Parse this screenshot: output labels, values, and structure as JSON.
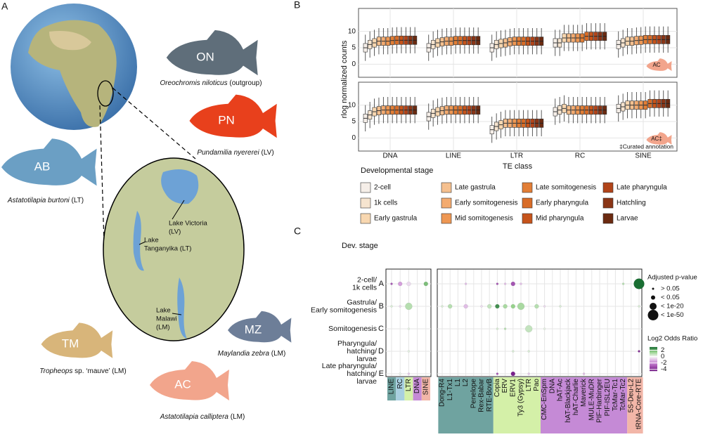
{
  "panel_labels": [
    "A",
    "B",
    "C"
  ],
  "panel_a": {
    "species": [
      {
        "code": "ON",
        "italic": "Oreochromis niloticus",
        "rest": " (outgroup)",
        "color": "#5f6e7a"
      },
      {
        "code": "PN",
        "italic": "Pundamilia nyererei",
        "rest": " (LV)",
        "color": "#e8401c"
      },
      {
        "code": "AB",
        "italic": "Astatotilapia burtoni",
        "rest": " (LT)",
        "color": "#6b9fc4"
      },
      {
        "code": "MZ",
        "italic": "Maylandia zebra",
        "rest": " (LM)",
        "color": "#6d7e98"
      },
      {
        "code": "TM",
        "italic": "Tropheops",
        "rest": " sp. ‘mauve’ (LM)",
        "color": "#d8b57a"
      },
      {
        "code": "AC",
        "italic": "Astatotilapia calliptera",
        "rest": " (LM)",
        "color": "#f2a58c"
      }
    ],
    "lakes": [
      [
        "Lake Victoria",
        "(LV)"
      ],
      [
        "Lake",
        "Tanganyika (LT)"
      ],
      [
        "Lake",
        "Malawi",
        "(LM)"
      ]
    ]
  },
  "chart_data": [
    {
      "type": "boxplot",
      "y_label": "rlog normalized counts",
      "x_label": "TE class",
      "legend_title": "Developmental stage",
      "categories": [
        "DNA",
        "LINE",
        "LTR",
        "RC",
        "SINE"
      ],
      "ylim": [
        -4,
        17
      ],
      "yticks": [
        0,
        5,
        10
      ],
      "grid": true,
      "stages": [
        {
          "name": "2-cell",
          "color": "#f5eee8"
        },
        {
          "name": "1k cells",
          "color": "#f6e4cf"
        },
        {
          "name": "Early gastrula",
          "color": "#f8d7b0"
        },
        {
          "name": "Late gastrula",
          "color": "#f5c08f"
        },
        {
          "name": "Early somitogenesis",
          "color": "#f3ab70"
        },
        {
          "name": "Mid somitogenesis",
          "color": "#ee9753"
        },
        {
          "name": "Late somitogenesis",
          "color": "#e27e36"
        },
        {
          "name": "Early pharyngula",
          "color": "#d86c27"
        },
        {
          "name": "Mid pharyngula",
          "color": "#c6541b"
        },
        {
          "name": "Late pharyngula",
          "color": "#b14419"
        },
        {
          "name": "Hatchling",
          "color": "#8a3516"
        },
        {
          "name": "Larvae",
          "color": "#6b2a10"
        }
      ],
      "facets": [
        {
          "tag": "AC",
          "values": [
            [
              5,
              6,
              6.5,
              7,
              7,
              7,
              7.2,
              7.3,
              7.3,
              7.3,
              7.3,
              7.3
            ],
            [
              5,
              6,
              6.5,
              6.8,
              7,
              7,
              7.2,
              7.2,
              7.2,
              7.2,
              7.2,
              7.2
            ],
            [
              5,
              6,
              6.3,
              6.5,
              6.8,
              7,
              7,
              7,
              7,
              7,
              7,
              7
            ],
            [
              6.5,
              6.5,
              8,
              8,
              8,
              8,
              8,
              8.5,
              8.5,
              8.5,
              8.5,
              8.5
            ],
            [
              6,
              6.5,
              7,
              7,
              7.2,
              7.3,
              7.5,
              7.5,
              7.5,
              7.5,
              7.5,
              7.5
            ]
          ]
        },
        {
          "tag": "AC‡",
          "note": "‡Curated annotation",
          "values": [
            [
              6,
              7,
              8,
              8.3,
              8.5,
              8.5,
              8.5,
              8.5,
              8.5,
              8.5,
              8.5,
              8.5
            ],
            [
              6.5,
              7.5,
              8,
              8.3,
              8.5,
              8.5,
              8.5,
              8.5,
              8.5,
              8.5,
              8.5,
              8.5
            ],
            [
              2.5,
              3.5,
              4,
              4.5,
              4.5,
              4.5,
              4.5,
              4.5,
              4.5,
              4.5,
              4.5,
              4.5
            ],
            [
              8,
              8.5,
              9,
              8.5,
              8.5,
              8.5,
              8.5,
              8.5,
              8.5,
              8.5,
              8.5,
              8.5
            ],
            [
              9,
              9.5,
              10,
              10,
              10,
              10,
              10,
              10.5,
              10.5,
              10.5,
              10.5,
              10.5
            ]
          ]
        }
      ]
    },
    {
      "type": "dot",
      "title": "Dev. stage",
      "rows": [
        {
          "letter": "A",
          "lines": [
            "2-cell/",
            "1k cells"
          ]
        },
        {
          "letter": "B",
          "lines": [
            "Gastrula/",
            "Early somitogenesis"
          ]
        },
        {
          "letter": "C",
          "lines": [
            "Somitogenesis"
          ]
        },
        {
          "letter": "D",
          "lines": [
            "Pharyngula/",
            "hatching/",
            "larvae"
          ]
        },
        {
          "letter": "E",
          "lines": [
            "Late pharyngula/",
            "hatching/",
            "larvae"
          ]
        }
      ],
      "groups": [
        {
          "name": "LINE",
          "color": "#6fa3a0"
        },
        {
          "name": "RC",
          "color": "#a8cfe0"
        },
        {
          "name": "LTR",
          "color": "#d4f0a8"
        },
        {
          "name": "DNA",
          "color": "#c58ad6"
        },
        {
          "name": "SINE",
          "color": "#f2b6a8"
        }
      ],
      "families": [
        {
          "name": "Dong-R4",
          "group": 0
        },
        {
          "name": "L1-Tx1",
          "group": 0
        },
        {
          "name": "L1",
          "group": 0
        },
        {
          "name": "L2",
          "group": 0
        },
        {
          "name": "Penelope",
          "group": 0
        },
        {
          "name": "Rex-Babar",
          "group": 0
        },
        {
          "name": "RTE-BovB",
          "group": 0
        },
        {
          "name": "Copia",
          "group": 2
        },
        {
          "name": "ERV",
          "group": 2
        },
        {
          "name": "ERV1",
          "group": 2
        },
        {
          "name": "Ty3 (Gypsy)",
          "group": 2
        },
        {
          "name": "LTR",
          "group": 2
        },
        {
          "name": "Pao",
          "group": 2
        },
        {
          "name": "CMC-EnSpm",
          "group": 3
        },
        {
          "name": "DNA",
          "group": 3
        },
        {
          "name": "hAT-Ac",
          "group": 3
        },
        {
          "name": "hAT-Blackjack",
          "group": 3
        },
        {
          "name": "hAT-Charlie",
          "group": 3
        },
        {
          "name": "Maverick",
          "group": 3
        },
        {
          "name": "MULE-MuDR",
          "group": 3
        },
        {
          "name": "PIF-Harbinger",
          "group": 3
        },
        {
          "name": "PIF-ISL2EU",
          "group": 3
        },
        {
          "name": "TcMar-Tc1",
          "group": 3
        },
        {
          "name": "TcMar-Tc2",
          "group": 3
        },
        {
          "name": "5S-Deu-L2",
          "group": 4
        },
        {
          "name": "tRNA-Core-RTE",
          "group": 4
        }
      ],
      "size_legend_title": "Adjusted p-value",
      "size_levels": [
        "> 0.05",
        "< 0.05",
        "< 1e-20",
        "< 1e-50"
      ],
      "color_legend_title": "Log2 Odds Ratio",
      "clim": [
        -4.5,
        3
      ],
      "cticks": [
        2,
        0,
        -2,
        -4
      ],
      "class_points": [
        {
          "row": 0,
          "col": 0,
          "p": "> 0.05",
          "ratio": -3
        },
        {
          "row": 0,
          "col": 1,
          "p": "< 0.05",
          "ratio": -1.5
        },
        {
          "row": 0,
          "col": 2,
          "p": "< 0.05",
          "ratio": -0.5
        },
        {
          "row": 0,
          "col": 4,
          "p": "< 0.05",
          "ratio": 1.8
        },
        {
          "row": 1,
          "col": 0,
          "p": "> 0.05",
          "ratio": 0.5
        },
        {
          "row": 1,
          "col": 1,
          "p": "> 0.05",
          "ratio": -0.5
        },
        {
          "row": 1,
          "col": 2,
          "p": "< 1e-20",
          "ratio": 1
        },
        {
          "row": 2,
          "col": 2,
          "p": "> 0.05",
          "ratio": 0.3
        },
        {
          "row": 3,
          "col": 2,
          "p": "> 0.05",
          "ratio": 0.3
        },
        {
          "row": 4,
          "col": 1,
          "p": "> 0.05",
          "ratio": 0.2
        },
        {
          "row": 4,
          "col": 2,
          "p": "> 0.05",
          "ratio": -0.8
        }
      ],
      "family_points": [
        {
          "row": 0,
          "col": 3,
          "p": "> 0.05",
          "ratio": -1
        },
        {
          "row": 0,
          "col": 7,
          "p": "> 0.05",
          "ratio": -3
        },
        {
          "row": 0,
          "col": 8,
          "p": "> 0.05",
          "ratio": -1
        },
        {
          "row": 0,
          "col": 9,
          "p": "< 0.05",
          "ratio": -3
        },
        {
          "row": 0,
          "col": 10,
          "p": "> 0.05",
          "ratio": -1
        },
        {
          "row": 0,
          "col": 23,
          "p": "> 0.05",
          "ratio": 1
        },
        {
          "row": 0,
          "col": 25,
          "p": "< 1e-50",
          "ratio": 3
        },
        {
          "row": 1,
          "col": 0,
          "p": "> 0.05",
          "ratio": 0.5
        },
        {
          "row": 1,
          "col": 1,
          "p": "< 0.05",
          "ratio": 1
        },
        {
          "row": 1,
          "col": 3,
          "p": "< 0.05",
          "ratio": -1
        },
        {
          "row": 1,
          "col": 5,
          "p": "> 0.05",
          "ratio": -0.5
        },
        {
          "row": 1,
          "col": 6,
          "p": "< 0.05",
          "ratio": 0.8
        },
        {
          "row": 1,
          "col": 7,
          "p": "< 0.05",
          "ratio": 2.5
        },
        {
          "row": 1,
          "col": 8,
          "p": "< 0.05",
          "ratio": 1.2
        },
        {
          "row": 1,
          "col": 9,
          "p": "< 0.05",
          "ratio": 1.5
        },
        {
          "row": 1,
          "col": 10,
          "p": "< 1e-20",
          "ratio": 1.2
        },
        {
          "row": 1,
          "col": 12,
          "p": "< 0.05",
          "ratio": 1
        },
        {
          "row": 1,
          "col": 13,
          "p": "> 0.05",
          "ratio": -0.5
        },
        {
          "row": 1,
          "col": 15,
          "p": "> 0.05",
          "ratio": 0.5
        },
        {
          "row": 1,
          "col": 25,
          "p": "> 0.05",
          "ratio": 0.5
        },
        {
          "row": 2,
          "col": 7,
          "p": "> 0.05",
          "ratio": 0.5
        },
        {
          "row": 2,
          "col": 8,
          "p": "> 0.05",
          "ratio": 1
        },
        {
          "row": 2,
          "col": 11,
          "p": "< 1e-20",
          "ratio": 0.8
        },
        {
          "row": 2,
          "col": 13,
          "p": "> 0.05",
          "ratio": 0.3
        },
        {
          "row": 3,
          "col": 9,
          "p": "> 0.05",
          "ratio": 0.5
        },
        {
          "row": 3,
          "col": 11,
          "p": "> 0.05",
          "ratio": 0.5
        },
        {
          "row": 3,
          "col": 25,
          "p": "> 0.05",
          "ratio": -4
        },
        {
          "row": 4,
          "col": 7,
          "p": "> 0.05",
          "ratio": -3
        },
        {
          "row": 4,
          "col": 9,
          "p": "< 0.05",
          "ratio": -4.2
        },
        {
          "row": 4,
          "col": 11,
          "p": "> 0.05",
          "ratio": -0.8
        },
        {
          "row": 4,
          "col": 18,
          "p": "> 0.05",
          "ratio": -1
        }
      ]
    }
  ]
}
